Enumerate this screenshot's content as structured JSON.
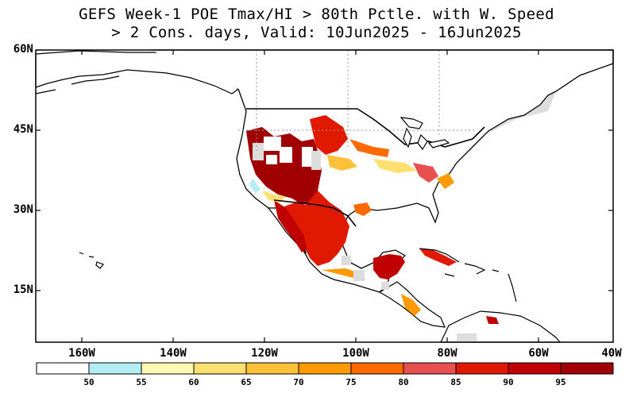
{
  "title": {
    "line1": "GEFS Week-1 POE Tmax/HI > 80th Pctle. with W. Speed",
    "line2": "> 2 Cons. days, Valid: 10Jun2025 - 16Jun2025"
  },
  "axes": {
    "lat_labels": [
      "60N",
      "45N",
      "30N",
      "15N"
    ],
    "lon_labels": [
      "160W",
      "140W",
      "120W",
      "100W",
      "80W",
      "60W",
      "40W"
    ]
  },
  "colorbar": {
    "labels": [
      "50",
      "55",
      "60",
      "65",
      "70",
      "75",
      "80",
      "85",
      "90",
      "95"
    ],
    "colors": [
      "#ffffff",
      "#b3eef5",
      "#fff8b0",
      "#ffe070",
      "#ffc03a",
      "#ff9a00",
      "#ff6a00",
      "#e85050",
      "#e01a00",
      "#c00000",
      "#a00000"
    ]
  },
  "map": {
    "land_color": "#ffffff",
    "canada_color": "#dddddd",
    "ocean_color": "#ffffff",
    "border_color": "#000000"
  }
}
